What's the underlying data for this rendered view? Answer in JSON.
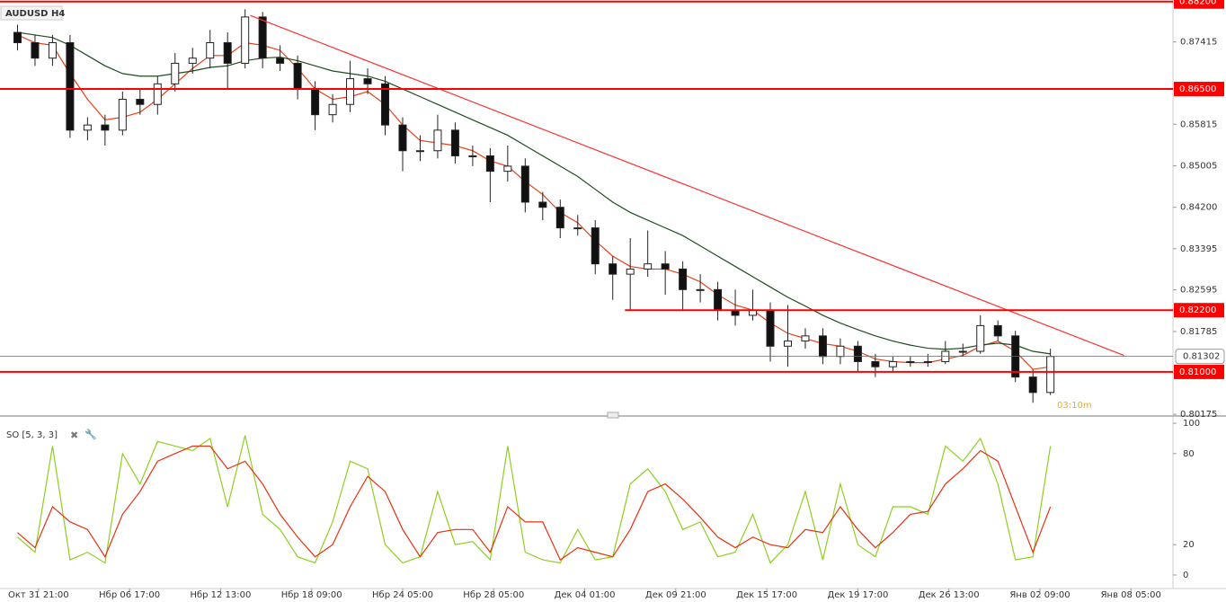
{
  "chart_data": [
    {
      "type": "candlestick",
      "title": "AUDUSD H4",
      "x": [
        0,
        1,
        2,
        3,
        4,
        5,
        6,
        7,
        8,
        9,
        10,
        11,
        12,
        13,
        14,
        15,
        16,
        17,
        18,
        19,
        20,
        21,
        22,
        23,
        24,
        25,
        26,
        27,
        28,
        29,
        30,
        31,
        32,
        33,
        34,
        35,
        36,
        37,
        38,
        39,
        40,
        41,
        42,
        43,
        44,
        45,
        46,
        47,
        48,
        49,
        50,
        51,
        52,
        53,
        54,
        55,
        56,
        57,
        58,
        59
      ],
      "open": [
        0.876,
        0.874,
        0.871,
        0.874,
        0.857,
        0.858,
        0.857,
        0.863,
        0.862,
        0.866,
        0.87,
        0.871,
        0.874,
        0.87,
        0.879,
        0.871,
        0.87,
        0.865,
        0.86,
        0.862,
        0.867,
        0.866,
        0.858,
        0.853,
        0.853,
        0.857,
        0.852,
        0.852,
        0.849,
        0.85,
        0.843,
        0.842,
        0.838,
        0.838,
        0.831,
        0.829,
        0.83,
        0.831,
        0.83,
        0.826,
        0.826,
        0.822,
        0.821,
        0.822,
        0.815,
        0.816,
        0.817,
        0.813,
        0.815,
        0.812,
        0.811,
        0.812,
        0.812,
        0.812,
        0.814,
        0.814,
        0.819,
        0.817,
        0.809,
        0.806
      ],
      "high": [
        0.8775,
        0.8755,
        0.8755,
        0.8755,
        0.8595,
        0.86,
        0.8645,
        0.865,
        0.8675,
        0.872,
        0.873,
        0.8765,
        0.876,
        0.8805,
        0.88,
        0.8735,
        0.8715,
        0.8665,
        0.864,
        0.8705,
        0.869,
        0.8675,
        0.8595,
        0.856,
        0.86,
        0.8585,
        0.854,
        0.8535,
        0.854,
        0.8515,
        0.845,
        0.8435,
        0.8405,
        0.8395,
        0.8325,
        0.836,
        0.8375,
        0.8335,
        0.8315,
        0.829,
        0.8275,
        0.826,
        0.826,
        0.8235,
        0.823,
        0.8185,
        0.8185,
        0.8165,
        0.816,
        0.8135,
        0.813,
        0.813,
        0.8135,
        0.816,
        0.8155,
        0.821,
        0.82,
        0.818,
        0.8105,
        0.8145
      ],
      "low": [
        0.8725,
        0.8695,
        0.8695,
        0.8555,
        0.855,
        0.854,
        0.856,
        0.86,
        0.86,
        0.8645,
        0.868,
        0.869,
        0.865,
        0.869,
        0.869,
        0.8685,
        0.863,
        0.857,
        0.8585,
        0.8605,
        0.864,
        0.856,
        0.849,
        0.851,
        0.8515,
        0.8505,
        0.85,
        0.843,
        0.847,
        0.841,
        0.8395,
        0.836,
        0.8365,
        0.829,
        0.824,
        0.822,
        0.8285,
        0.825,
        0.822,
        0.8235,
        0.82,
        0.819,
        0.82,
        0.812,
        0.811,
        0.8145,
        0.8115,
        0.8115,
        0.81,
        0.809,
        0.81,
        0.811,
        0.811,
        0.8115,
        0.813,
        0.8135,
        0.816,
        0.808,
        0.804,
        0.8055
      ],
      "close": [
        0.874,
        0.871,
        0.874,
        0.857,
        0.858,
        0.857,
        0.863,
        0.862,
        0.866,
        0.87,
        0.871,
        0.874,
        0.87,
        0.879,
        0.871,
        0.87,
        0.865,
        0.86,
        0.862,
        0.867,
        0.866,
        0.858,
        0.853,
        0.853,
        0.857,
        0.852,
        0.852,
        0.849,
        0.85,
        0.843,
        0.842,
        0.838,
        0.838,
        0.831,
        0.829,
        0.83,
        0.831,
        0.83,
        0.826,
        0.826,
        0.822,
        0.821,
        0.822,
        0.815,
        0.816,
        0.817,
        0.813,
        0.815,
        0.812,
        0.811,
        0.812,
        0.812,
        0.812,
        0.814,
        0.814,
        0.819,
        0.817,
        0.809,
        0.806,
        0.813
      ],
      "up_color": "#ffffff",
      "down_color": "#111111",
      "wick_color": "#222222",
      "overlays": [
        {
          "color": "#e8401a",
          "values": [
            0.8755,
            0.874,
            0.8735,
            0.868,
            0.863,
            0.859,
            0.8595,
            0.8605,
            0.863,
            0.866,
            0.869,
            0.8715,
            0.8715,
            0.874,
            0.8735,
            0.8725,
            0.869,
            0.865,
            0.863,
            0.8635,
            0.8645,
            0.862,
            0.858,
            0.855,
            0.8545,
            0.854,
            0.853,
            0.851,
            0.85,
            0.847,
            0.8445,
            0.841,
            0.839,
            0.8355,
            0.8325,
            0.8305,
            0.83,
            0.83,
            0.829,
            0.8275,
            0.825,
            0.823,
            0.822,
            0.8195,
            0.8175,
            0.8165,
            0.8155,
            0.815,
            0.814,
            0.8125,
            0.812,
            0.8118,
            0.8118,
            0.8125,
            0.8132,
            0.815,
            0.816,
            0.814,
            0.8105,
            0.811
          ]
        },
        {
          "color": "#1e4d1e",
          "values": [
            0.876,
            0.8755,
            0.875,
            0.8735,
            0.8715,
            0.8695,
            0.868,
            0.8675,
            0.8675,
            0.868,
            0.8685,
            0.8692,
            0.8695,
            0.8705,
            0.871,
            0.8712,
            0.8705,
            0.8695,
            0.8685,
            0.868,
            0.8675,
            0.8665,
            0.865,
            0.8635,
            0.862,
            0.8605,
            0.859,
            0.8575,
            0.856,
            0.854,
            0.852,
            0.85,
            0.848,
            0.8455,
            0.843,
            0.841,
            0.8395,
            0.838,
            0.8365,
            0.8345,
            0.8325,
            0.8305,
            0.8285,
            0.8265,
            0.8245,
            0.8228,
            0.821,
            0.8195,
            0.8182,
            0.817,
            0.816,
            0.8152,
            0.8146,
            0.8144,
            0.8146,
            0.8152,
            0.8156,
            0.8152,
            0.814,
            0.8135
          ]
        }
      ],
      "ylim": [
        0.8016,
        0.8823
      ],
      "yticks": [
        0.87415,
        0.85815,
        0.85005,
        {
          "value": 0.842,
          "label": "0.84200"
        },
        0.83395,
        0.82595,
        0.81785,
        0.80175
      ],
      "xlim": [
        -1,
        66
      ],
      "xticks": [
        {
          "value": 1.2,
          "label": "Окт 31 21:00"
        },
        {
          "value": 6.4,
          "label": "Нбр 06 17:00"
        },
        {
          "value": 11.6,
          "label": "Нбр 12 13:00"
        },
        {
          "value": 16.8,
          "label": "Нбр 18 09:00"
        },
        {
          "value": 22.0,
          "label": "Нбр 24 05:00"
        },
        {
          "value": 27.2,
          "label": "Нбр 28 05:00"
        },
        {
          "value": 32.4,
          "label": "Дек 04 01:00"
        },
        {
          "value": 37.6,
          "label": "Дек 09 21:00"
        },
        {
          "value": 42.8,
          "label": "Дек 15 17:00"
        },
        {
          "value": 48.0,
          "label": "Дек 19 17:00"
        },
        {
          "value": 53.2,
          "label": "Дек 26 13:00"
        },
        {
          "value": 58.4,
          "label": "Янв 02 09:00"
        },
        {
          "value": 63.6,
          "label": "Янв 08 05:00"
        }
      ],
      "levels": [
        {
          "value": 0.882,
          "label": "0.88200"
        },
        {
          "value": 0.865,
          "label": "0.86500"
        },
        {
          "value": 0.822,
          "label": "0.82200",
          "from": 34.7
        },
        {
          "value": 0.81,
          "label": "0.81000"
        }
      ],
      "level_color": "#ff0000",
      "trendline": {
        "x": [
          13.3,
          63.2
        ],
        "y": [
          0.8793,
          0.8132
        ],
        "color": "#ff3030"
      },
      "last_price": 0.81302,
      "timer": "03:10m"
    },
    {
      "type": "line",
      "title": "SO [5, 3, 3]",
      "ylim": [
        -8.9,
        103.6
      ],
      "yticks": [
        0,
        20,
        80,
        100
      ],
      "series": [
        {
          "color": "#8fcf1f",
          "values": [
            25,
            15,
            85,
            10,
            15,
            8,
            80,
            60,
            88,
            85,
            82,
            90,
            45,
            92,
            40,
            30,
            12,
            8,
            35,
            75,
            70,
            20,
            8,
            12,
            55,
            20,
            22,
            10,
            85,
            15,
            10,
            8,
            30,
            10,
            12,
            60,
            70,
            55,
            30,
            35,
            12,
            15,
            40,
            8,
            20,
            55,
            10,
            60,
            20,
            12,
            45,
            45,
            40,
            85,
            75,
            90,
            60,
            10,
            12,
            85
          ]
        },
        {
          "color": "#e83010",
          "values": [
            28,
            18,
            45,
            35,
            30,
            12,
            40,
            55,
            75,
            80,
            85,
            85,
            70,
            75,
            60,
            40,
            25,
            12,
            20,
            45,
            65,
            55,
            30,
            12,
            28,
            30,
            30,
            15,
            45,
            35,
            35,
            10,
            18,
            15,
            12,
            30,
            55,
            60,
            50,
            38,
            25,
            18,
            25,
            20,
            18,
            30,
            28,
            45,
            30,
            18,
            28,
            40,
            42,
            60,
            70,
            82,
            75,
            45,
            15,
            45
          ]
        }
      ]
    }
  ]
}
